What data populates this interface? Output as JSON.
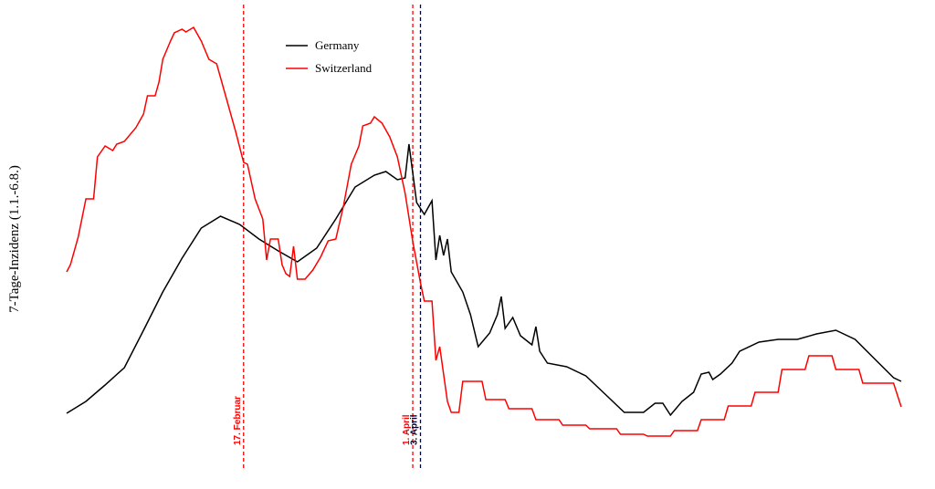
{
  "chart_data": {
    "type": "line",
    "y_label": "7-Tage-Inzidenz (1.1.-6.8.)",
    "xlim": [
      0,
      217
    ],
    "ylim": [
      0,
      480
    ],
    "legend": "top-center",
    "series": [
      {
        "name": "Germany",
        "color": "#000000",
        "x": [
          0,
          5,
          10,
          15,
          20,
          25,
          30,
          35,
          40,
          45,
          50,
          55,
          60,
          65,
          70,
          75,
          80,
          83,
          86,
          88,
          89,
          91,
          93,
          95,
          96,
          97,
          98,
          99,
          100,
          103,
          105,
          107,
          110,
          112,
          113,
          114,
          116,
          118,
          121,
          122,
          123,
          125,
          130,
          135,
          140,
          145,
          150,
          153,
          155,
          157,
          160,
          163,
          165,
          167,
          168,
          170,
          173,
          175,
          180,
          185,
          190,
          195,
          200,
          205,
          210,
          215,
          217
        ],
        "values": [
          47,
          60,
          78,
          97,
          138,
          180,
          217,
          250,
          263,
          254,
          238,
          225,
          213,
          228,
          260,
          295,
          308,
          312,
          303,
          305,
          342,
          278,
          265,
          280,
          215,
          242,
          220,
          238,
          202,
          180,
          155,
          120,
          135,
          155,
          175,
          140,
          152,
          132,
          122,
          142,
          115,
          102,
          98,
          88,
          68,
          48,
          48,
          58,
          58,
          45,
          60,
          70,
          90,
          92,
          84,
          90,
          102,
          115,
          125,
          128,
          128,
          134,
          138,
          128,
          107,
          86,
          82
        ]
      },
      {
        "name": "Switzerland",
        "color": "#ff0000",
        "x": [
          0,
          1,
          3,
          5,
          7,
          8,
          10,
          12,
          13,
          15,
          18,
          20,
          21,
          23,
          24,
          25,
          27,
          28,
          30,
          31,
          33,
          35,
          37,
          39,
          40,
          42,
          44,
          46,
          47,
          49,
          51,
          52,
          53,
          55,
          56,
          57,
          58,
          59,
          60,
          62,
          64,
          66,
          68,
          70,
          72,
          74,
          76,
          77,
          79,
          80,
          82,
          84,
          86,
          88,
          90,
          92,
          93,
          95,
          96,
          97,
          99,
          100,
          102,
          103,
          108,
          109,
          114,
          115,
          121,
          122,
          128,
          129,
          135,
          136,
          143,
          144,
          150,
          151,
          157,
          158,
          164,
          165,
          171,
          172,
          178,
          179,
          185,
          186,
          192,
          193,
          199,
          200,
          206,
          207,
          215,
          217
        ],
        "values": [
          202,
          210,
          240,
          282,
          282,
          328,
          340,
          335,
          342,
          345,
          360,
          375,
          395,
          395,
          410,
          435,
          455,
          464,
          468,
          465,
          470,
          455,
          435,
          430,
          415,
          385,
          355,
          322,
          320,
          282,
          260,
          215,
          238,
          238,
          210,
          200,
          197,
          230,
          194,
          194,
          204,
          218,
          236,
          238,
          275,
          320,
          340,
          362,
          365,
          372,
          365,
          350,
          328,
          288,
          235,
          190,
          170,
          170,
          105,
          120,
          60,
          48,
          48,
          82,
          82,
          62,
          62,
          52,
          52,
          40,
          40,
          34,
          34,
          30,
          30,
          24,
          24,
          22,
          22,
          28,
          28,
          40,
          40,
          55,
          55,
          70,
          70,
          95,
          95,
          110,
          110,
          95,
          95,
          80,
          80,
          54
        ]
      }
    ],
    "vlines": [
      {
        "x": 46,
        "label": "17. Februar",
        "color": "#ff0000"
      },
      {
        "x": 90,
        "label": "1. April",
        "color": "#ff0000"
      },
      {
        "x": 92,
        "label": "3. April",
        "color": "#000033"
      }
    ]
  }
}
